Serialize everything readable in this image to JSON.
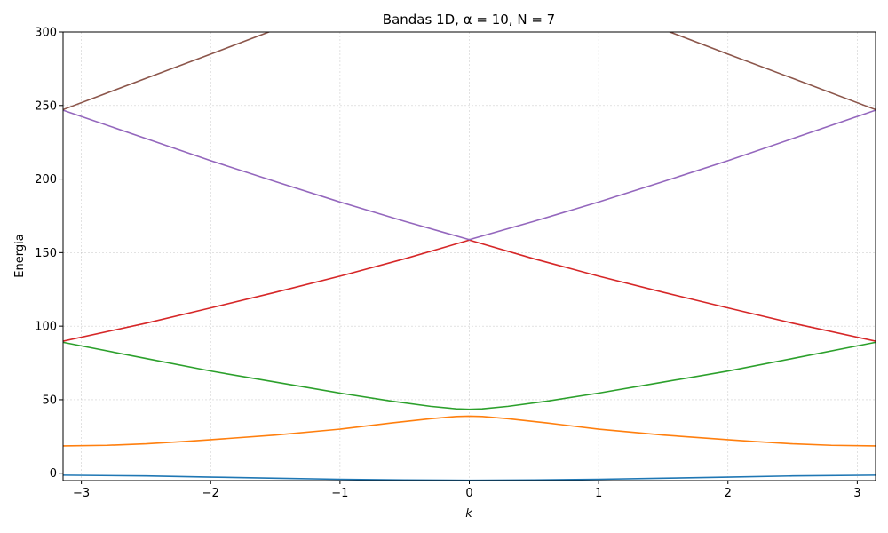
{
  "chart_data": {
    "type": "line",
    "title": "Bandas 1D, α = 10, N = 7",
    "xlabel": "k",
    "ylabel": "Energia",
    "xlim": [
      -3.14159,
      3.14159
    ],
    "ylim": [
      -5,
      300
    ],
    "xticks": [
      -3,
      -2,
      -1,
      0,
      1,
      2,
      3
    ],
    "yticks": [
      0,
      50,
      100,
      150,
      200,
      250,
      300
    ],
    "grid": true,
    "series": [
      {
        "color": "#1f77b4",
        "x": [
          -3.1416,
          -2.5,
          -2.0,
          -1.5,
          -1.0,
          -0.5,
          0.0,
          0.5,
          1.0,
          1.5,
          2.0,
          2.5,
          3.1416
        ],
        "y": [
          -1.3,
          -1.8,
          -2.6,
          -3.4,
          -4.1,
          -4.6,
          -4.8,
          -4.6,
          -4.1,
          -3.4,
          -2.6,
          -1.8,
          -1.3
        ]
      },
      {
        "color": "#ff7f0e",
        "x": [
          -3.1416,
          -2.8,
          -2.5,
          -2.2,
          -2.0,
          -1.5,
          -1.0,
          -0.6,
          -0.3,
          -0.1,
          0.0,
          0.1,
          0.3,
          0.6,
          1.0,
          1.5,
          2.0,
          2.2,
          2.5,
          2.8,
          3.1416
        ],
        "y": [
          18.6,
          19.0,
          20.0,
          21.6,
          22.8,
          26.0,
          30.0,
          34.2,
          37.1,
          38.6,
          38.8,
          38.6,
          37.1,
          34.2,
          30.0,
          26.0,
          22.8,
          21.6,
          20.0,
          19.0,
          18.6
        ]
      },
      {
        "color": "#2ca02c",
        "x": [
          -3.1416,
          -2.5,
          -2.0,
          -1.5,
          -1.0,
          -0.6,
          -0.3,
          -0.1,
          0.0,
          0.1,
          0.3,
          0.6,
          1.0,
          1.5,
          2.0,
          2.5,
          3.1416
        ],
        "y": [
          89.0,
          78.0,
          69.5,
          62.0,
          54.5,
          49.0,
          45.5,
          43.8,
          43.5,
          43.8,
          45.5,
          49.0,
          54.5,
          62.0,
          69.5,
          78.0,
          89.0
        ]
      },
      {
        "color": "#d62728",
        "x": [
          -3.1416,
          -2.5,
          -2.0,
          -1.5,
          -1.0,
          -0.5,
          0.0,
          0.5,
          1.0,
          1.5,
          2.0,
          2.5,
          3.1416
        ],
        "y": [
          89.8,
          102.0,
          112.4,
          123.0,
          134.0,
          145.8,
          158.5,
          145.8,
          134.0,
          123.0,
          112.4,
          102.0,
          89.8
        ]
      },
      {
        "color": "#9467bd",
        "x": [
          -3.1416,
          -2.5,
          -2.0,
          -1.5,
          -1.0,
          -0.5,
          0.0,
          0.5,
          1.0,
          1.5,
          2.0,
          2.5,
          3.1416
        ],
        "y": [
          246.8,
          227.5,
          212.5,
          198.3,
          184.4,
          171.3,
          158.8,
          171.3,
          184.4,
          198.3,
          212.5,
          227.5,
          246.8
        ]
      },
      {
        "color": "#8c564b",
        "x": [
          -3.1416,
          -2.5,
          -2.0,
          -1.5,
          -1.0,
          0.0,
          1.0,
          1.5,
          2.0,
          2.5,
          3.1416
        ],
        "y": [
          247.2,
          268.5,
          285.0,
          301.7,
          320.0,
          360.0,
          320.0,
          301.7,
          285.0,
          268.5,
          247.2
        ]
      }
    ]
  }
}
